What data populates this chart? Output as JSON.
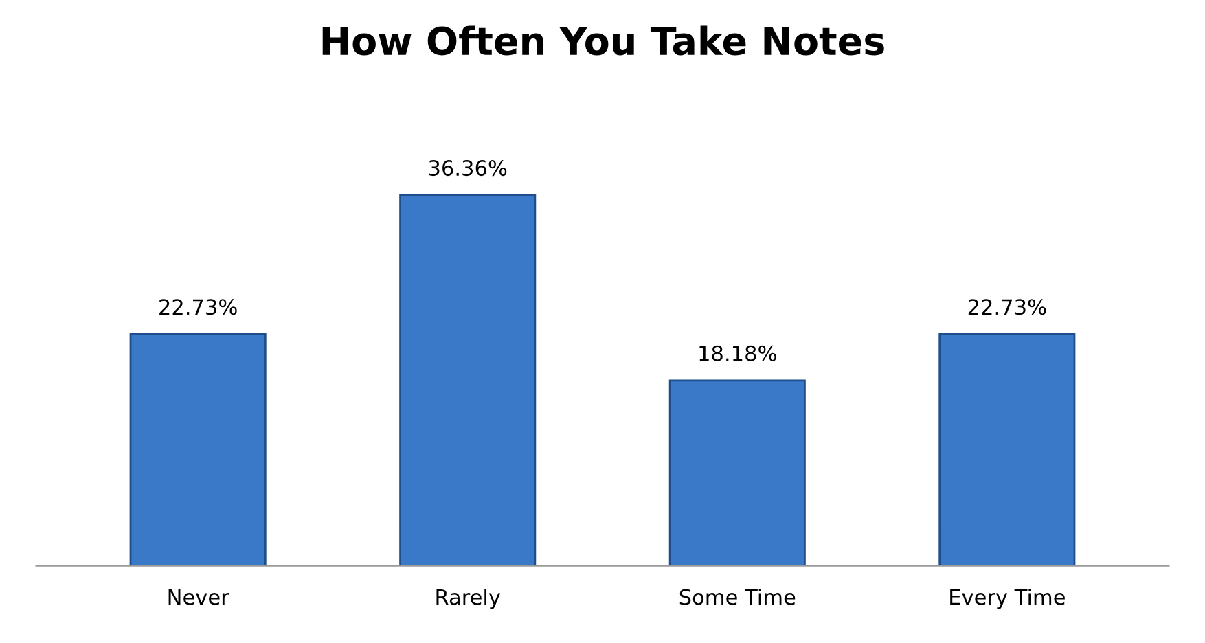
{
  "chart_data": {
    "type": "bar",
    "title": "How Often You Take Notes",
    "categories": [
      "Never",
      "Rarely",
      "Some Time",
      "Every Time"
    ],
    "values": [
      22.73,
      36.36,
      18.18,
      22.73
    ],
    "value_labels": [
      "22.73%",
      "36.36%",
      "18.18%",
      "22.73%"
    ],
    "color": "#3a78c8",
    "grid": false
  }
}
